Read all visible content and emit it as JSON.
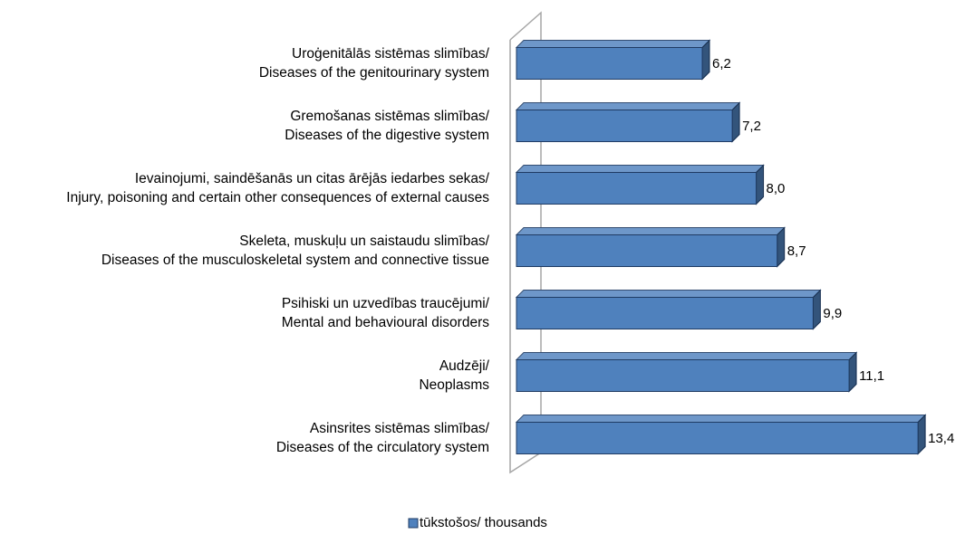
{
  "chart_data": {
    "type": "bar",
    "orientation": "horizontal",
    "categories": [
      "Uroģenitālās sistēmas slimības/\nDiseases of the genitourinary system",
      "Gremošanas sistēmas slimības/\nDiseases of the digestive system",
      "Ievainojumi, saindēšanās un citas ārējās iedarbes sekas/\nInjury, poisoning and certain other consequences of external causes",
      "Skeleta, muskuļu un saistaudu slimības/\nDiseases of the musculoskeletal system and connective tissue",
      "Psihiski un uzvedības traucējumi/\nMental and behavioural disorders",
      "Audzēji/\nNeoplasms",
      "Asinsrites sistēmas slimības/\nDiseases of the circulatory system"
    ],
    "series": [
      {
        "name": "tūkstošos/ thousands",
        "color": "#4f81bd",
        "values": [
          6.2,
          7.2,
          8.0,
          8.7,
          9.9,
          11.1,
          13.4
        ],
        "value_labels": [
          "6,2",
          "7,2",
          "8,0",
          "8,7",
          "9,9",
          "11,1",
          "13,4"
        ]
      }
    ],
    "legend": "bottom"
  }
}
